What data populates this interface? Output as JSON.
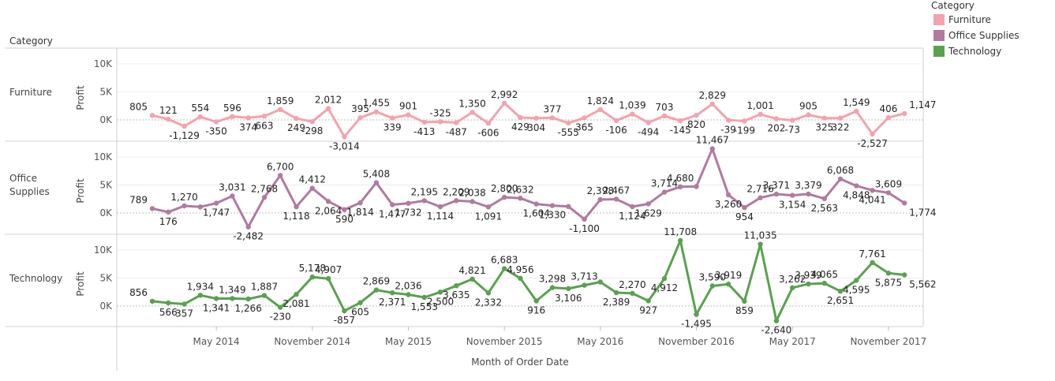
{
  "header": {
    "category_label": "Category"
  },
  "legend": {
    "title": "Category",
    "items": [
      {
        "label": "Furniture",
        "color": "#f4a2ad"
      },
      {
        "label": "Office Supplies",
        "color": "#b07aa1"
      },
      {
        "label": "Technology",
        "color": "#59a14f"
      }
    ]
  },
  "chart_data": {
    "type": "line",
    "xlabel": "Month of Order Date",
    "ylabel": "Profit",
    "x_start": "2014-01",
    "x_end": "2017-12",
    "x_tick_labels": [
      "May 2014",
      "November 2014",
      "May 2015",
      "November 2015",
      "May 2016",
      "November 2016",
      "May 2017",
      "November 2017"
    ],
    "x_tick_months": [
      "2014-05",
      "2014-11",
      "2015-05",
      "2015-11",
      "2016-05",
      "2016-11",
      "2017-05",
      "2017-11"
    ],
    "ylim": [
      -3500,
      12500
    ],
    "y_ticks": [
      0,
      5000,
      10000
    ],
    "y_tick_labels": [
      "0K",
      "5K",
      "10K"
    ],
    "grid": true,
    "legend_position": "top-right",
    "series": [
      {
        "name": "Furniture",
        "color": "#f4a2ad",
        "values": [
          805,
          121,
          -1129,
          554,
          -350,
          596,
          374,
          663,
          1859,
          249,
          -298,
          2012,
          -3014,
          395,
          1455,
          339,
          901,
          -413,
          -325,
          -487,
          1350,
          -606,
          2992,
          429,
          304,
          377,
          -555,
          365,
          1824,
          -106,
          1039,
          -494,
          703,
          -145,
          820,
          2829,
          -39,
          -199,
          1001,
          202,
          -73,
          905,
          325,
          322,
          1549,
          -2527,
          406,
          1147
        ],
        "labels": [
          "805",
          "121",
          "-1,129",
          "554",
          "-350",
          "596",
          "374",
          "663",
          "1,859",
          "249",
          "-298",
          "2,012",
          "-3,014",
          "395",
          "1,455",
          "339",
          "901",
          "-413",
          "-325",
          "-487",
          "1,350",
          "-606",
          "2,992",
          "429",
          "304",
          "377",
          "-555",
          "365",
          "1,824",
          "-106",
          "1,039",
          "-494",
          "703",
          "-145",
          "820",
          "2,829",
          "-39",
          "-199",
          "1,001",
          "202",
          "-73",
          "905",
          "325",
          "322",
          "1,549",
          "-2,527",
          "406",
          "1,147"
        ]
      },
      {
        "name": "Office Supplies",
        "color": "#b07aa1",
        "values": [
          789,
          176,
          1270,
          1080,
          1747,
          3031,
          -2482,
          2768,
          6700,
          1118,
          4412,
          2064,
          590,
          1814,
          5408,
          1477,
          1732,
          2195,
          1114,
          2209,
          2038,
          1091,
          2800,
          2632,
          1604,
          1330,
          1150,
          -1100,
          2398,
          2467,
          1124,
          1629,
          3714,
          4680,
          4720,
          11467,
          3260,
          954,
          2716,
          3371,
          3154,
          3379,
          2563,
          6068,
          4848,
          4041,
          3609,
          1774
        ],
        "labels": [
          "789",
          "176",
          "1,270",
          "",
          "1,747",
          "3,031",
          "-2,482",
          "2,768",
          "6,700",
          "1,118",
          "4,412",
          "2,064",
          "590",
          "1,814",
          "5,408",
          "1,477",
          "1,732",
          "2,195",
          "1,114",
          "2,209",
          "2,038",
          "1,091",
          "2,800",
          "2,632",
          "1,604",
          "1,330",
          "",
          "-1,100",
          "2,398",
          "2,467",
          "1,124",
          "1,629",
          "3,714",
          "4,680",
          "",
          "11,467",
          "3,260",
          "954",
          "2,716",
          "3,371",
          "3,154",
          "3,379",
          "2,563",
          "6,068",
          "4,848",
          "4,041",
          "3,609",
          "1,774"
        ]
      },
      {
        "name": "Technology",
        "color": "#59a14f",
        "values": [
          856,
          566,
          357,
          1934,
          1341,
          1349,
          1266,
          1887,
          -230,
          2081,
          5178,
          4907,
          -857,
          605,
          2869,
          2371,
          2036,
          1553,
          2500,
          3635,
          4821,
          2332,
          6683,
          4956,
          916,
          3298,
          3106,
          3713,
          4300,
          2389,
          2270,
          927,
          4912,
          11708,
          -1495,
          3590,
          3919,
          859,
          11035,
          -2640,
          3262,
          3939,
          4065,
          2651,
          4595,
          7761,
          5875,
          5562
        ],
        "labels": [
          "856",
          "566",
          "357",
          "1,934",
          "1,341",
          "1,349",
          "1,266",
          "1,887",
          "-230",
          "2,081",
          "5,178",
          "4,907",
          "-857",
          "605",
          "2,869",
          "2,371",
          "2,036",
          "1,553",
          "2,500",
          "3,635",
          "4,821",
          "2,332",
          "6,683",
          "4,956",
          "916",
          "3,298",
          "3,106",
          "3,713",
          "",
          "2,389",
          "2,270",
          "927",
          "4,912",
          "11,708",
          "-1,495",
          "3,590",
          "3,919",
          "859",
          "11,035",
          "-2,640",
          "3,262",
          "3,939",
          "4,065",
          "2,651",
          "4,595",
          "7,761",
          "5,875",
          "5,562"
        ]
      }
    ]
  }
}
